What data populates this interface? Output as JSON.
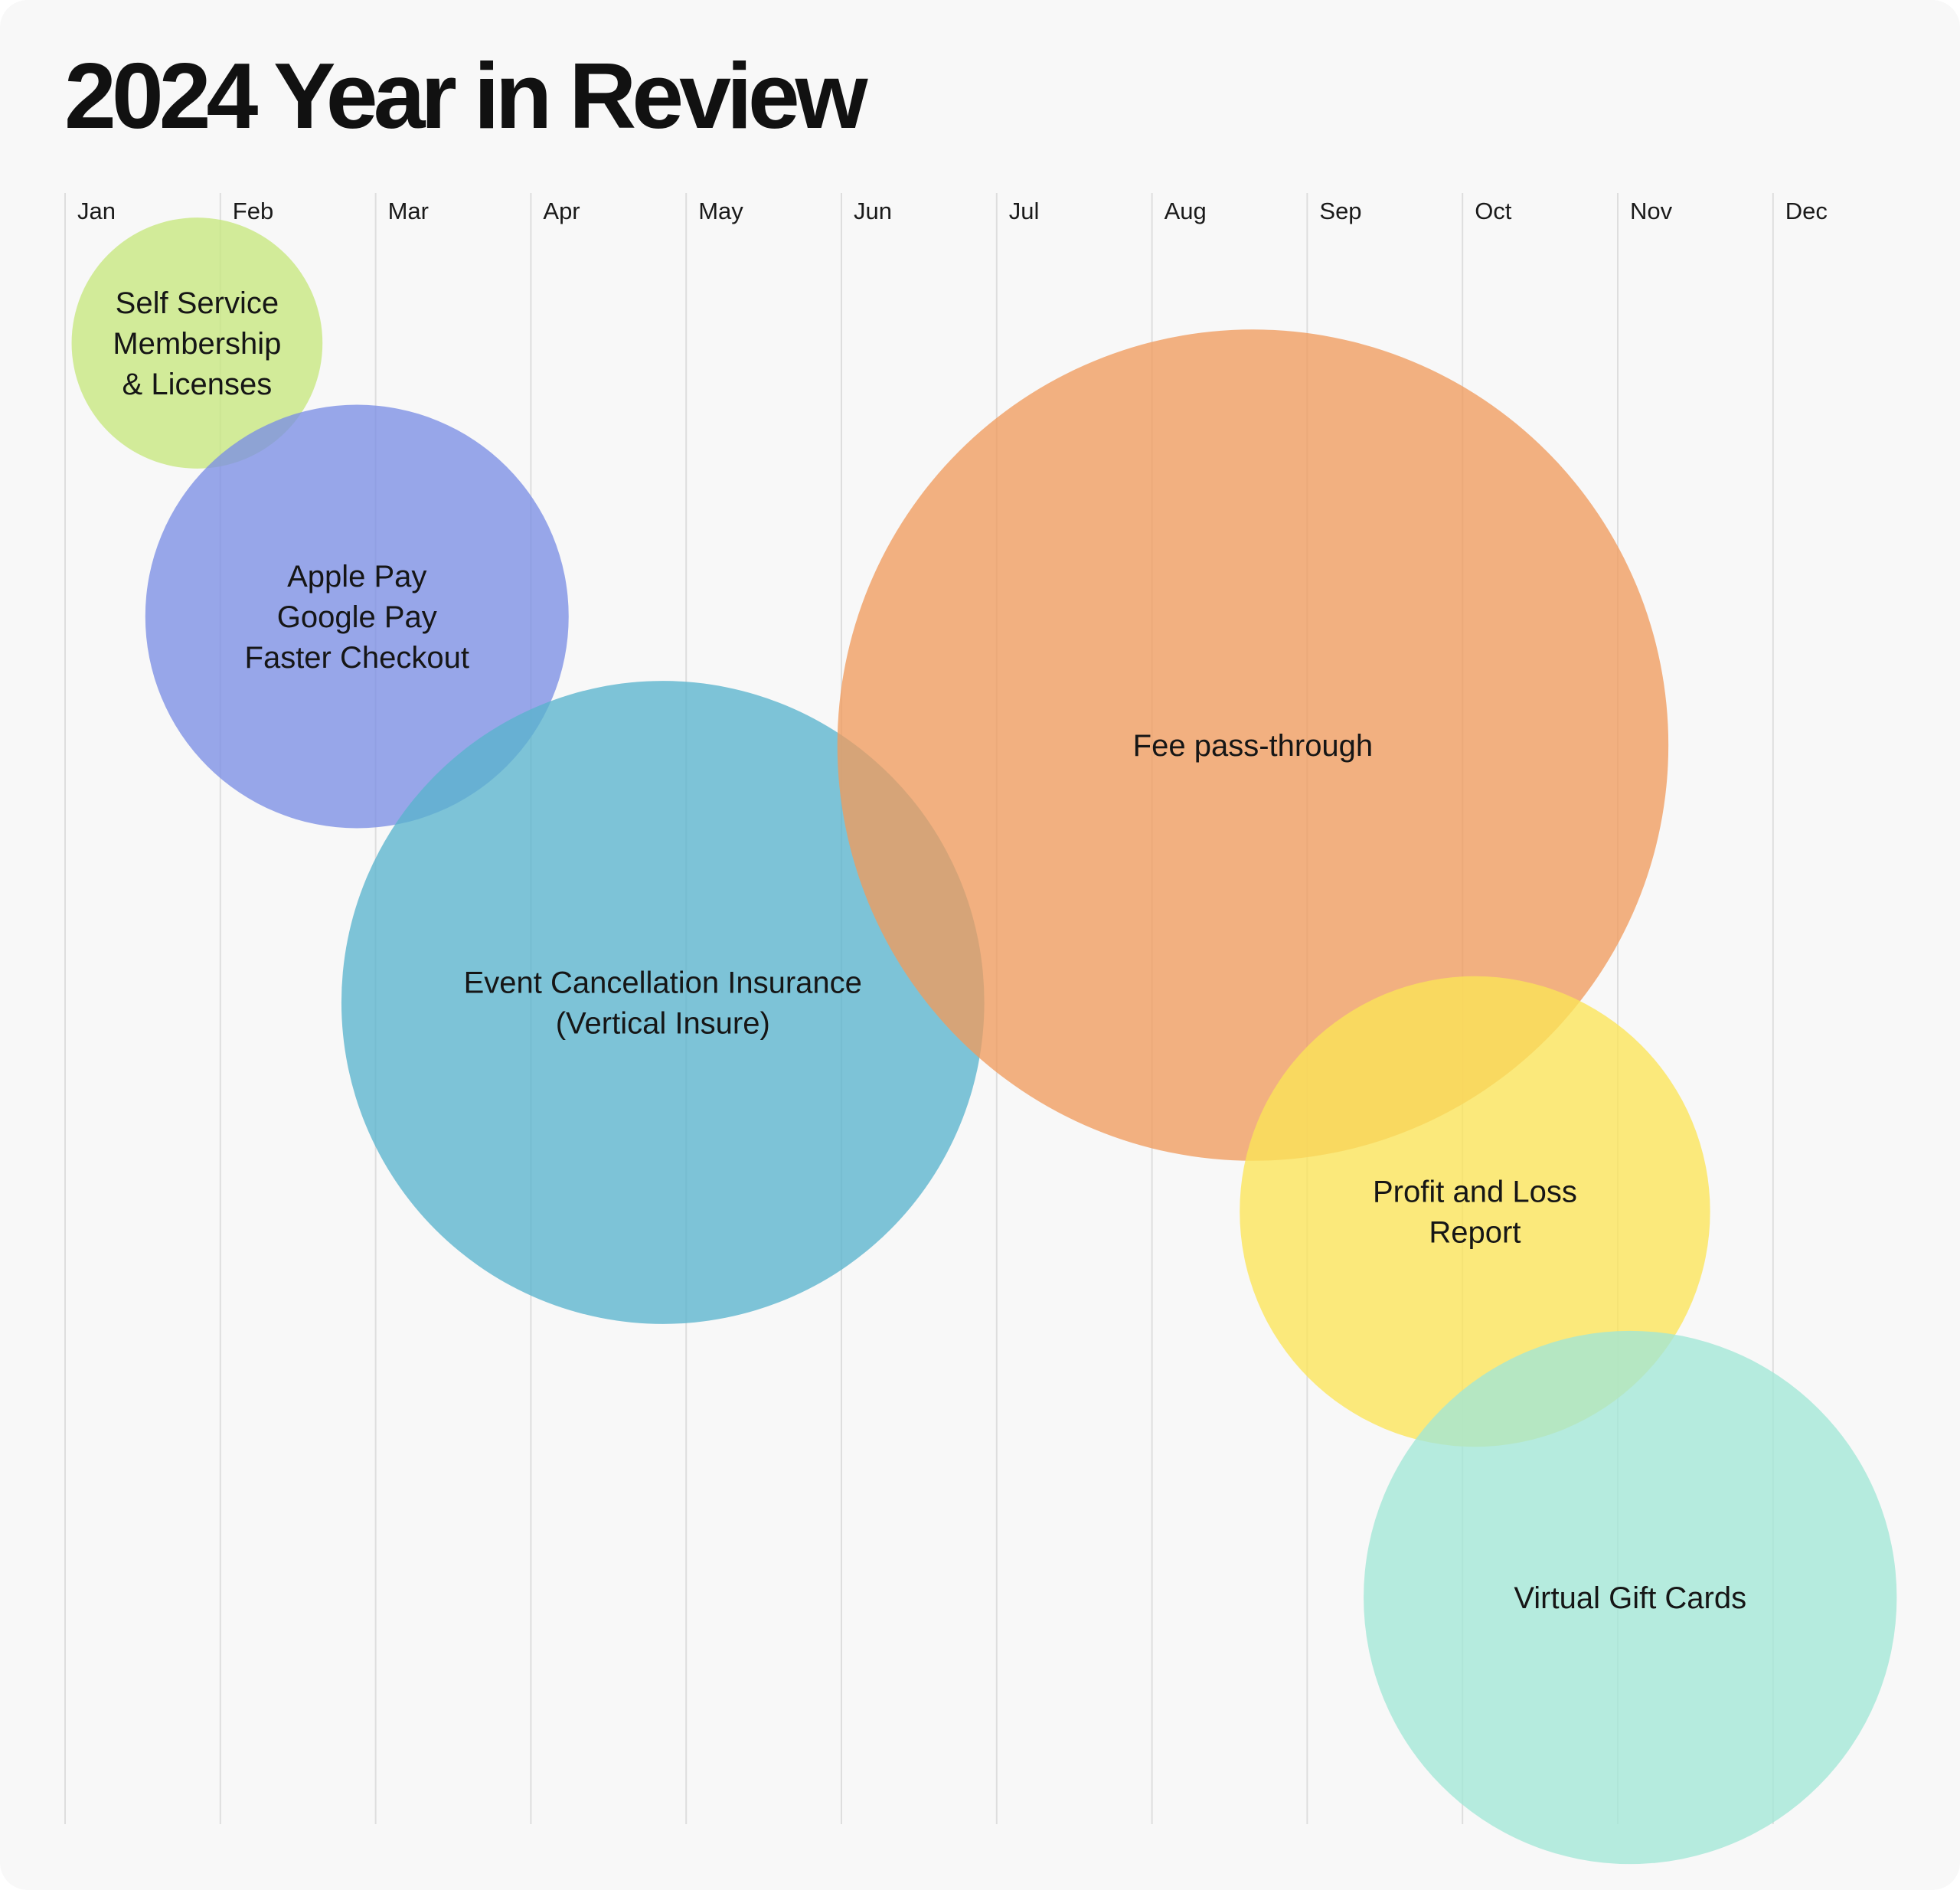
{
  "chart_data": {
    "type": "bubble",
    "title": "2024 Year in Review",
    "months": [
      "Jan",
      "Feb",
      "Mar",
      "Apr",
      "May",
      "Jun",
      "Jul",
      "Aug",
      "Sep",
      "Oct",
      "Nov",
      "Dec"
    ],
    "grid": true,
    "bubbles": [
      {
        "label_lines": [
          "Self Service",
          "Membership",
          "& Licenses"
        ],
        "month_position": 0.85,
        "row": 0.08,
        "size": 0.16,
        "color": "#c6e77e"
      },
      {
        "label_lines": [
          "Apple Pay",
          "Google Pay",
          "Faster Checkout"
        ],
        "month_position": 1.88,
        "row": 0.25,
        "size": 0.27,
        "color": "#7b8ee4"
      },
      {
        "label_lines": [
          "Event Cancellation Insurance",
          "(Vertical Insure)"
        ],
        "month_position": 3.85,
        "row": 0.49,
        "size": 0.41,
        "color": "#5ab3cd"
      },
      {
        "label_lines": [
          "Fee pass-through"
        ],
        "month_position": 7.65,
        "row": 0.33,
        "size": 0.53,
        "color": "#f09b5e"
      },
      {
        "label_lines": [
          "Profit and Loss",
          "Report"
        ],
        "month_position": 9.08,
        "row": 0.62,
        "size": 0.3,
        "color": "#fbe457"
      },
      {
        "label_lines": [
          "Virtual Gift Cards"
        ],
        "month_position": 10.08,
        "row": 0.86,
        "size": 0.34,
        "color": "#a2e7d6"
      }
    ]
  }
}
